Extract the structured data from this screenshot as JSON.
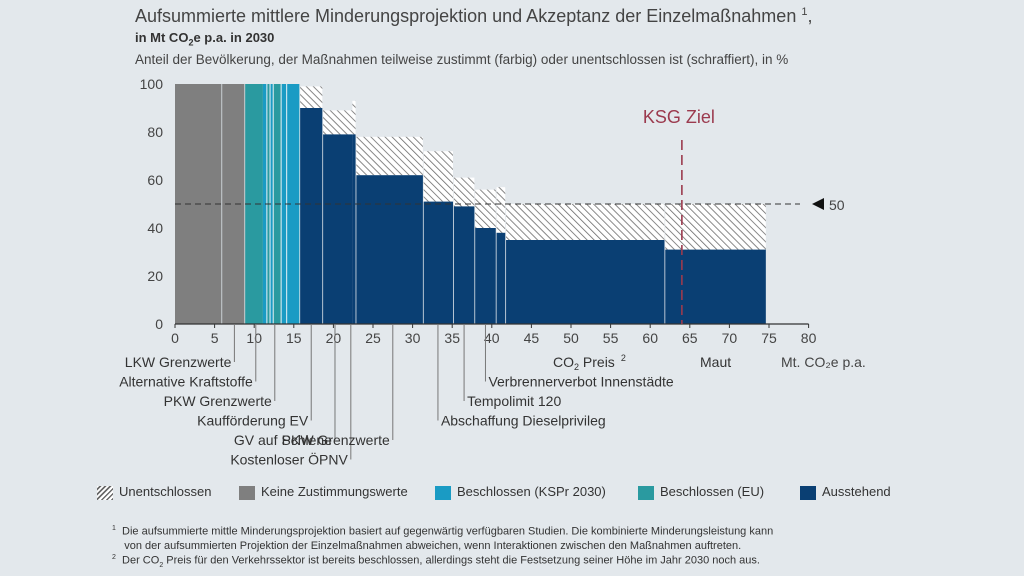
{
  "title": {
    "main": "Aufsummierte mittlere Minderungsprojektion und Akzeptanz der Einzelmaßnahmen",
    "footnote_ref": "1",
    "unit_prefix": "in Mt CO",
    "unit_sub": "2",
    "unit_suffix": "e p.a. in 2030",
    "subtitle": "Anteil der Bevölkerung, der Maßnahmen teilweise zustimmt (farbig) oder unentschlossen ist (schraffiert), in %"
  },
  "colors": {
    "background": "#e3e8ec",
    "grey": "#7f7f7f",
    "kspr": "#1a9bc4",
    "eu": "#2a9aa0",
    "ausstehend": "#0a3f73",
    "ksg": "#9b3a4e"
  },
  "chart_data": {
    "type": "bar",
    "variant": "variable-width stacked (Marimekko)",
    "x_label": "Mt. CO₂e p.a.",
    "xlim": [
      0,
      80
    ],
    "x_ticks": [
      "0",
      "5",
      "10",
      "15",
      "20",
      "25",
      "30",
      "35",
      "40",
      "45",
      "50",
      "55",
      "60",
      "65",
      "70",
      "75",
      "80"
    ],
    "ylim": [
      0,
      100
    ],
    "y_ticks": [
      "0",
      "20",
      "40",
      "60",
      "80",
      "100"
    ],
    "grid": false,
    "legend_position": "bottom",
    "measures": [
      {
        "name": "LKW Grenzwerte",
        "x0": 0,
        "x1": 5.9,
        "agree": 100,
        "undecided": 0,
        "status": "keine"
      },
      {
        "name": "Alternative Kraftstoffe",
        "x0": 5.9,
        "x1": 8.8,
        "agree": 100,
        "undecided": 0,
        "status": "keine"
      },
      {
        "name": "PKW Grenzwerte",
        "x0": 8.8,
        "x1": 11.1,
        "agree": 100,
        "undecided": 0,
        "status": "eu"
      },
      {
        "name": "Kaufförderung EV",
        "x0": 11.1,
        "x1": 11.6,
        "agree": 100,
        "undecided": 0,
        "status": "kspr"
      },
      {
        "name": "",
        "x0": 11.6,
        "x1": 12.0,
        "agree": 100,
        "undecided": 0,
        "status": "eu"
      },
      {
        "name": "",
        "x0": 12.0,
        "x1": 12.4,
        "agree": 100,
        "undecided": 0,
        "status": "kspr"
      },
      {
        "name": "",
        "x0": 12.4,
        "x1": 13.4,
        "agree": 100,
        "undecided": 0,
        "status": "eu"
      },
      {
        "name": "",
        "x0": 13.4,
        "x1": 14.1,
        "agree": 100,
        "undecided": 0,
        "status": "kspr"
      },
      {
        "name": "",
        "x0": 14.1,
        "x1": 15.7,
        "agree": 100,
        "undecided": 0,
        "status": "kspr"
      },
      {
        "name": "GV auf Schiene",
        "x0": 15.8,
        "x1": 18.6,
        "agree": 90,
        "undecided": 9,
        "status": "ausstehend"
      },
      {
        "name": "Kostenloser ÖPNV",
        "x0": 18.7,
        "x1": 22.4,
        "agree": 79,
        "undecided": 10,
        "status": "ausstehend"
      },
      {
        "name": "",
        "x0": 22.4,
        "x1": 22.8,
        "agree": 79,
        "undecided": 14,
        "status": "ausstehend"
      },
      {
        "name": "PKW Grenzwerte",
        "x0": 22.9,
        "x1": 31.3,
        "agree": 62,
        "undecided": 16,
        "status": "ausstehend"
      },
      {
        "name": "Abschaffung Dieselprivileg",
        "x0": 31.4,
        "x1": 35.1,
        "agree": 51,
        "undecided": 21,
        "status": "ausstehend"
      },
      {
        "name": "Tempolimit 120",
        "x0": 35.2,
        "x1": 37.8,
        "agree": 49,
        "undecided": 12,
        "status": "ausstehend"
      },
      {
        "name": "Verbrennerverbot Innenstädte",
        "x0": 37.9,
        "x1": 40.5,
        "agree": 40,
        "undecided": 16,
        "status": "ausstehend"
      },
      {
        "name": "",
        "x0": 40.6,
        "x1": 41.7,
        "agree": 38,
        "undecided": 19,
        "status": "ausstehend"
      },
      {
        "name": "CO₂ Preis",
        "x0": 41.8,
        "x1": 61.8,
        "agree": 35,
        "undecided": 15,
        "status": "ausstehend"
      },
      {
        "name": "Maut",
        "x0": 61.9,
        "x1": 74.6,
        "agree": 31,
        "undecided": 19,
        "status": "ausstehend"
      }
    ],
    "reference_line": {
      "value": 50,
      "label": "50"
    },
    "ksg_target": {
      "x": 64,
      "label": "KSG Ziel"
    }
  },
  "category_labels": [
    {
      "text": "LKW Grenzwerte",
      "x": 7.5,
      "row": 0
    },
    {
      "text": "Alternative Kraftstoffe",
      "x": 10.2,
      "row": 1
    },
    {
      "text": "PKW Grenzwerte",
      "x": 12.6,
      "row": 2
    },
    {
      "text": "Kaufförderung EV",
      "x": 17.2,
      "row": 3
    },
    {
      "text": "GV auf Schiene",
      "x": 20.2,
      "row": 4
    },
    {
      "text": "Kostenloser ÖPNV",
      "x": 22.2,
      "row": 5
    },
    {
      "text": "PKW Grenzwerte",
      "x": 27.5,
      "row": 4
    },
    {
      "text": "Abschaffung Dieselprivileg",
      "x": 33.2,
      "row": 3
    },
    {
      "text": "Tempolimit 120",
      "x": 36.5,
      "row": 2
    },
    {
      "text": "Verbrennerverbot Innenstädte",
      "x": 39.2,
      "row": 1
    }
  ],
  "inline_labels": {
    "co2_preis": "CO",
    "co2_sub": "2",
    "co2_rest": " Preis",
    "co2_fn": "2",
    "maut": "Maut"
  },
  "legend": [
    {
      "label": "Unentschlossen",
      "swatch": "hatch"
    },
    {
      "label": "Keine Zustimmungswerte",
      "swatch": "#7f7f7f"
    },
    {
      "label": "Beschlossen (KSPr 2030)",
      "swatch": "#1a9bc4"
    },
    {
      "label": "Beschlossen (EU)",
      "swatch": "#2a9aa0"
    },
    {
      "label": "Ausstehend",
      "swatch": "#0a3f73"
    }
  ],
  "footnotes": {
    "fn1_mark": "1",
    "fn1_line1": "Die aufsummierte mittle Minderungsprojektion basiert auf gegenwärtig verfügbaren Studien. Die kombinierte Minderungsleistung kann",
    "fn1_line2": "von der aufsummierten Projektion der Einzelmaßnahmen abweichen, wenn Interaktionen zwischen den Maßnahmen auftreten.",
    "fn2_mark": "2",
    "fn2_pre": "Der CO",
    "fn2_sub": "2",
    "fn2_post": " Preis für den Verkehrssektor ist bereits beschlossen, allerdings steht die Festsetzung seiner Höhe im Jahr 2030 noch aus."
  }
}
